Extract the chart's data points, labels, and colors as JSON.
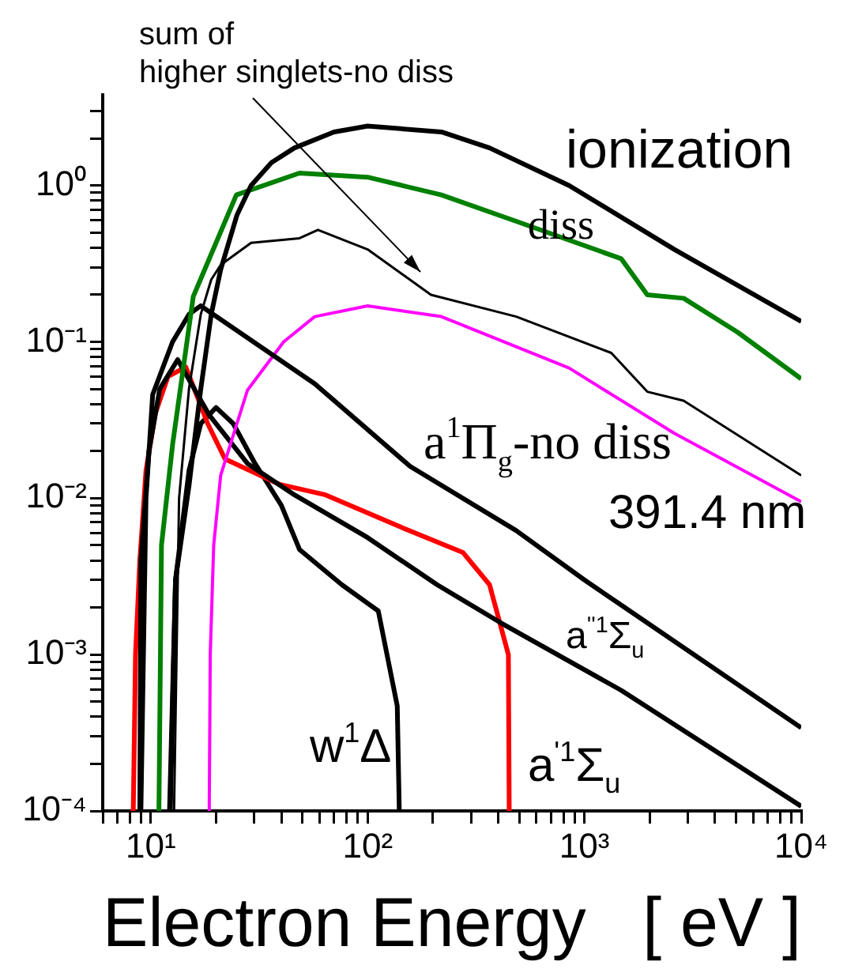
{
  "chart_data": {
    "type": "line",
    "xlabel": "Electron Energy   [ eV ]",
    "log": "xy",
    "grid": false,
    "legend": false,
    "xlim": [
      6,
      10000
    ],
    "ylim": [
      0.0001,
      3.8
    ],
    "xticks": [
      {
        "value": 6,
        "label": null
      },
      {
        "value": 7,
        "label": null
      },
      {
        "value": 8,
        "label": null
      },
      {
        "value": 9,
        "label": null
      },
      {
        "value": 10,
        "label": "10¹"
      },
      {
        "value": 20,
        "label": null
      },
      {
        "value": 30,
        "label": null
      },
      {
        "value": 40,
        "label": null
      },
      {
        "value": 50,
        "label": null
      },
      {
        "value": 60,
        "label": null
      },
      {
        "value": 70,
        "label": null
      },
      {
        "value": 80,
        "label": null
      },
      {
        "value": 90,
        "label": null
      },
      {
        "value": 100,
        "label": "10²"
      },
      {
        "value": 200,
        "label": null
      },
      {
        "value": 300,
        "label": null
      },
      {
        "value": 400,
        "label": null
      },
      {
        "value": 500,
        "label": null
      },
      {
        "value": 600,
        "label": null
      },
      {
        "value": 700,
        "label": null
      },
      {
        "value": 800,
        "label": null
      },
      {
        "value": 900,
        "label": null
      },
      {
        "value": 1000,
        "label": "10³"
      },
      {
        "value": 2000,
        "label": null
      },
      {
        "value": 3000,
        "label": null
      },
      {
        "value": 4000,
        "label": null
      },
      {
        "value": 5000,
        "label": null
      },
      {
        "value": 6000,
        "label": null
      },
      {
        "value": 7000,
        "label": null
      },
      {
        "value": 8000,
        "label": null
      },
      {
        "value": 9000,
        "label": null
      },
      {
        "value": 10000,
        "label": "10⁴"
      }
    ],
    "yticks": [
      {
        "value": 0.0001,
        "label": "10⁻⁴"
      },
      {
        "value": 0.0002,
        "label": null
      },
      {
        "value": 0.0003,
        "label": null
      },
      {
        "value": 0.0004,
        "label": null
      },
      {
        "value": 0.0005,
        "label": null
      },
      {
        "value": 0.0006,
        "label": null
      },
      {
        "value": 0.0007,
        "label": null
      },
      {
        "value": 0.0008,
        "label": null
      },
      {
        "value": 0.0009,
        "label": null
      },
      {
        "value": 0.001,
        "label": "10⁻³"
      },
      {
        "value": 0.002,
        "label": null
      },
      {
        "value": 0.003,
        "label": null
      },
      {
        "value": 0.004,
        "label": null
      },
      {
        "value": 0.005,
        "label": null
      },
      {
        "value": 0.006,
        "label": null
      },
      {
        "value": 0.007,
        "label": null
      },
      {
        "value": 0.008,
        "label": null
      },
      {
        "value": 0.009,
        "label": null
      },
      {
        "value": 0.01,
        "label": "10⁻²"
      },
      {
        "value": 0.02,
        "label": null
      },
      {
        "value": 0.03,
        "label": null
      },
      {
        "value": 0.04,
        "label": null
      },
      {
        "value": 0.05,
        "label": null
      },
      {
        "value": 0.06,
        "label": null
      },
      {
        "value": 0.07,
        "label": null
      },
      {
        "value": 0.08,
        "label": null
      },
      {
        "value": 0.09,
        "label": null
      },
      {
        "value": 0.1,
        "label": "10⁻¹"
      },
      {
        "value": 0.2,
        "label": null
      },
      {
        "value": 0.3,
        "label": null
      },
      {
        "value": 0.4,
        "label": null
      },
      {
        "value": 0.5,
        "label": null
      },
      {
        "value": 0.6,
        "label": null
      },
      {
        "value": 0.7,
        "label": null
      },
      {
        "value": 0.8,
        "label": null
      },
      {
        "value": 0.9,
        "label": null
      },
      {
        "value": 1,
        "label": "10⁰"
      },
      {
        "value": 2,
        "label": null
      },
      {
        "value": 3,
        "label": null
      }
    ],
    "series": [
      {
        "name": "ionization",
        "color": "#000000",
        "x": [
          12.2,
          13,
          15,
          17,
          19,
          21,
          25,
          29,
          36,
          46,
          70,
          100,
          219,
          365,
          850,
          2600,
          10000
        ],
        "values": [
          0.0001,
          0.003,
          0.012,
          0.05,
          0.15,
          0.29,
          0.65,
          1.0,
          1.4,
          1.74,
          2.2,
          2.4,
          2.2,
          1.74,
          1.0,
          0.39,
          0.135
        ]
      },
      {
        "name": "diss",
        "color": "#008000",
        "x": [
          10.9,
          11.2,
          12.6,
          15.7,
          24.8,
          48.5,
          100,
          219,
          485,
          1480,
          1950,
          2870,
          5100,
          10000
        ],
        "values": [
          0.0001,
          0.005,
          0.022,
          0.195,
          0.87,
          1.2,
          1.13,
          0.87,
          0.59,
          0.34,
          0.2,
          0.19,
          0.115,
          0.058
        ]
      },
      {
        "name": "sum of\nhigher singlets-no diss",
        "color": "#000000",
        "x": [
          12.8,
          13.5,
          15,
          17,
          19,
          21,
          29,
          48.5,
          59,
          100,
          196,
          485,
          1330,
          1950,
          2870,
          10000
        ],
        "values": [
          0.0001,
          0.01,
          0.05,
          0.15,
          0.25,
          0.31,
          0.43,
          0.46,
          0.52,
          0.39,
          0.2,
          0.145,
          0.085,
          0.048,
          0.042,
          0.014
        ]
      },
      {
        "name": "a$^{1}$Π$_{g}$-no diss",
        "color": "#000000",
        "x": [
          9,
          9.5,
          10.2,
          12.6,
          15,
          17,
          57,
          157,
          485,
          1000,
          10000
        ],
        "values": [
          0.0001,
          0.01,
          0.046,
          0.1,
          0.15,
          0.17,
          0.054,
          0.016,
          0.0062,
          0.003,
          0.00034
        ]
      },
      {
        "name": "391.4 nm",
        "color": "#ff00ff",
        "x": [
          18.6,
          18.8,
          19.5,
          21,
          27.9,
          41,
          57,
          100,
          219,
          850,
          2600,
          10000
        ],
        "values": [
          0.0001,
          0.001,
          0.005,
          0.014,
          0.049,
          0.1,
          0.145,
          0.17,
          0.145,
          0.068,
          0.026,
          0.0095
        ]
      },
      {
        "name": "a$^{''1}$Σ$_{u}$",
        "color": "#000000",
        "x": [
          8.9,
          9,
          9.8,
          11,
          13.3,
          18.6,
          28,
          46,
          100,
          209,
          410,
          1480,
          10000
        ],
        "values": [
          0.0001,
          0.004,
          0.02,
          0.05,
          0.077,
          0.034,
          0.0166,
          0.0105,
          0.0056,
          0.0028,
          0.0016,
          0.00059,
          0.000107
        ]
      },
      {
        "name": "a$^{'1}$Σ$_{u}$",
        "color": "#ff0000",
        "x": [
          8.3,
          8.5,
          8.9,
          9.5,
          10.5,
          12,
          14.5,
          18.3,
          22,
          39,
          64,
          140,
          275,
          365,
          446,
          450
        ],
        "values": [
          0.0001,
          0.001,
          0.004,
          0.015,
          0.035,
          0.06,
          0.069,
          0.03,
          0.0178,
          0.0123,
          0.0105,
          0.0066,
          0.0045,
          0.0028,
          0.001,
          0.0001
        ]
      },
      {
        "name": "w$^{1}$Δ",
        "color": "#000000",
        "x": [
          12.3,
          13,
          15,
          17,
          20,
          24,
          30,
          40,
          48.5,
          76,
          112,
          137,
          140
        ],
        "values": [
          0.0001,
          0.003,
          0.015,
          0.03,
          0.038,
          0.03,
          0.017,
          0.009,
          0.0047,
          0.0028,
          0.0019,
          0.00047,
          0.0001
        ]
      }
    ]
  }
}
